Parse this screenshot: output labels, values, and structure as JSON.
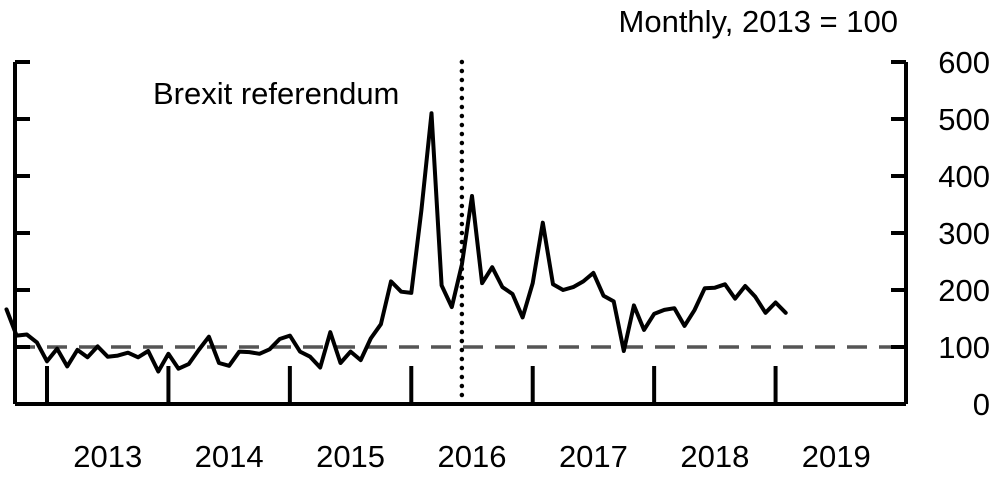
{
  "chart_data": {
    "type": "line",
    "subtitle": "Monthly, 2013 = 100",
    "x_tick_labels": [
      "2013",
      "2014",
      "2015",
      "2016",
      "2017",
      "2018",
      "2019"
    ],
    "y_tick_labels": [
      "0",
      "100",
      "200",
      "300",
      "400",
      "500",
      "600"
    ],
    "ylim": [
      0,
      600
    ],
    "y_axis_side": "right",
    "grid": false,
    "reference_line": {
      "y": 100,
      "style": "dashed",
      "color": "#555555"
    },
    "annotations": [
      {
        "text": "Brexit referendum",
        "x": "2016-06",
        "line_style": "dotted"
      }
    ],
    "series": [
      {
        "color": "#000000",
        "start": "2012-09",
        "frequency": "monthly",
        "values": [
          166,
          120,
          122,
          108,
          75,
          97,
          66,
          95,
          82,
          101,
          83,
          85,
          90,
          82,
          93,
          57,
          88,
          62,
          70,
          95,
          118,
          72,
          67,
          92,
          91,
          88,
          96,
          114,
          120,
          92,
          83,
          64,
          126,
          72,
          92,
          77,
          115,
          140,
          215,
          197,
          195,
          340,
          510,
          208,
          170,
          245,
          365,
          212,
          240,
          205,
          193,
          152,
          212,
          318,
          210,
          200,
          205,
          215,
          230,
          190,
          180,
          93,
          173,
          130,
          158,
          165,
          168,
          137,
          165,
          203,
          204,
          210,
          185,
          207,
          188,
          160,
          178,
          160
        ]
      }
    ]
  }
}
